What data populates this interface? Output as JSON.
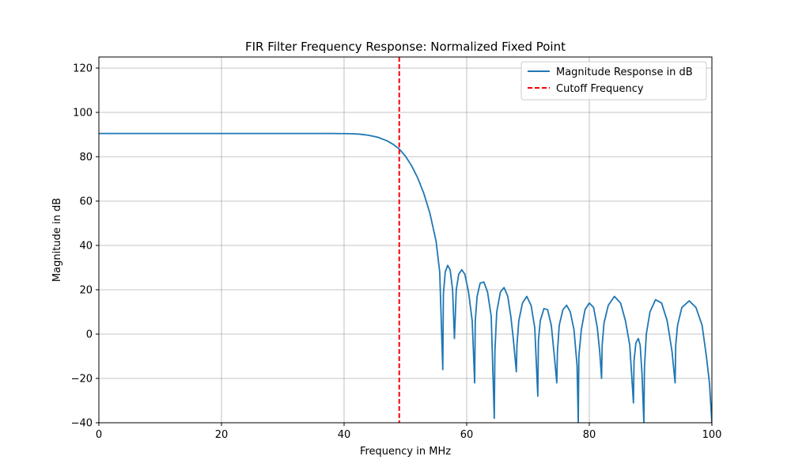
{
  "chart_data": {
    "type": "line",
    "title": "FIR Filter Frequency Response: Normalized Fixed Point",
    "xlabel": "Frequency in MHz",
    "ylabel": "Magnitude in dB",
    "xlim": [
      0,
      100
    ],
    "ylim": [
      -40,
      125
    ],
    "x_ticks": [
      0,
      20,
      40,
      60,
      80,
      100
    ],
    "y_ticks": [
      -40,
      -20,
      0,
      20,
      40,
      60,
      80,
      100,
      120
    ],
    "x_tick_labels": [
      "0",
      "20",
      "40",
      "60",
      "80",
      "100"
    ],
    "y_tick_labels": [
      "−40",
      "−20",
      "0",
      "20",
      "40",
      "60",
      "80",
      "100",
      "120"
    ],
    "grid": true,
    "legend_position": "top-right",
    "series": [
      {
        "name": "Magnitude Response in dB",
        "color": "#1f77b4",
        "style": "solid",
        "x": [
          0,
          10,
          20,
          30,
          38,
          41,
          42.5,
          44,
          45.5,
          47,
          48,
          49,
          50,
          51,
          52,
          53,
          54,
          55,
          55.6,
          56.1,
          56.2,
          56.5,
          56.9,
          57.3,
          57.7,
          58.0,
          58.1,
          58.3,
          58.7,
          59.2,
          59.7,
          60.3,
          60.9,
          61.3,
          61.4,
          61.7,
          62.2,
          62.8,
          63.4,
          64.0,
          64.5,
          64.6,
          64.9,
          65.5,
          66.1,
          66.7,
          67.2,
          67.6,
          68.1,
          68.2,
          68.5,
          69.1,
          69.8,
          70.5,
          71.1,
          71.6,
          71.7,
          72.0,
          72.6,
          73.2,
          73.8,
          74.3,
          74.7,
          74.8,
          75.1,
          75.7,
          76.3,
          76.9,
          77.5,
          78.0,
          78.2,
          78.3,
          78.7,
          79.3,
          80.0,
          80.7,
          81.3,
          81.7,
          82.0,
          82.1,
          82.4,
          83.1,
          84.1,
          85.1,
          85.9,
          86.6,
          87.2,
          87.3,
          87.6,
          88.0,
          88.3,
          88.6,
          88.9,
          89.0,
          89.3,
          89.9,
          90.8,
          91.8,
          92.7,
          93.5,
          94.0,
          94.1,
          94.4,
          95.1,
          96.3,
          97.4,
          98.4,
          99.1,
          99.6,
          100
        ],
        "y": [
          90.5,
          90.5,
          90.5,
          90.5,
          90.5,
          90.4,
          90.2,
          89.7,
          88.8,
          87.2,
          85.6,
          83.5,
          80.3,
          76.0,
          70.5,
          63.5,
          54.5,
          42.0,
          28.0,
          -16,
          18,
          28,
          31,
          29,
          20,
          -2,
          5,
          20,
          27,
          29,
          27,
          19,
          6,
          -22,
          6,
          17,
          23,
          23.5,
          19,
          8,
          -38,
          -8,
          10,
          19,
          21,
          17,
          8,
          -2,
          -17,
          -5,
          6,
          14,
          17,
          13,
          3,
          -28,
          -3,
          6,
          11.5,
          11,
          4,
          -10,
          -22,
          -8,
          4,
          11,
          13,
          10,
          2,
          -14,
          -40,
          -10,
          2,
          11,
          14,
          12,
          3,
          -8,
          -20,
          -5,
          5,
          13,
          17,
          14,
          6,
          -5,
          -31,
          -12,
          -4,
          -2,
          -5,
          -18,
          -40,
          -15,
          0,
          10,
          15.5,
          14,
          6,
          -8,
          -22,
          -5,
          4,
          12,
          15,
          12,
          4,
          -10,
          -22,
          -40
        ]
      },
      {
        "name": "Cutoff Frequency",
        "color": "#ff0000",
        "style": "dashed",
        "x_value": 49
      }
    ]
  }
}
